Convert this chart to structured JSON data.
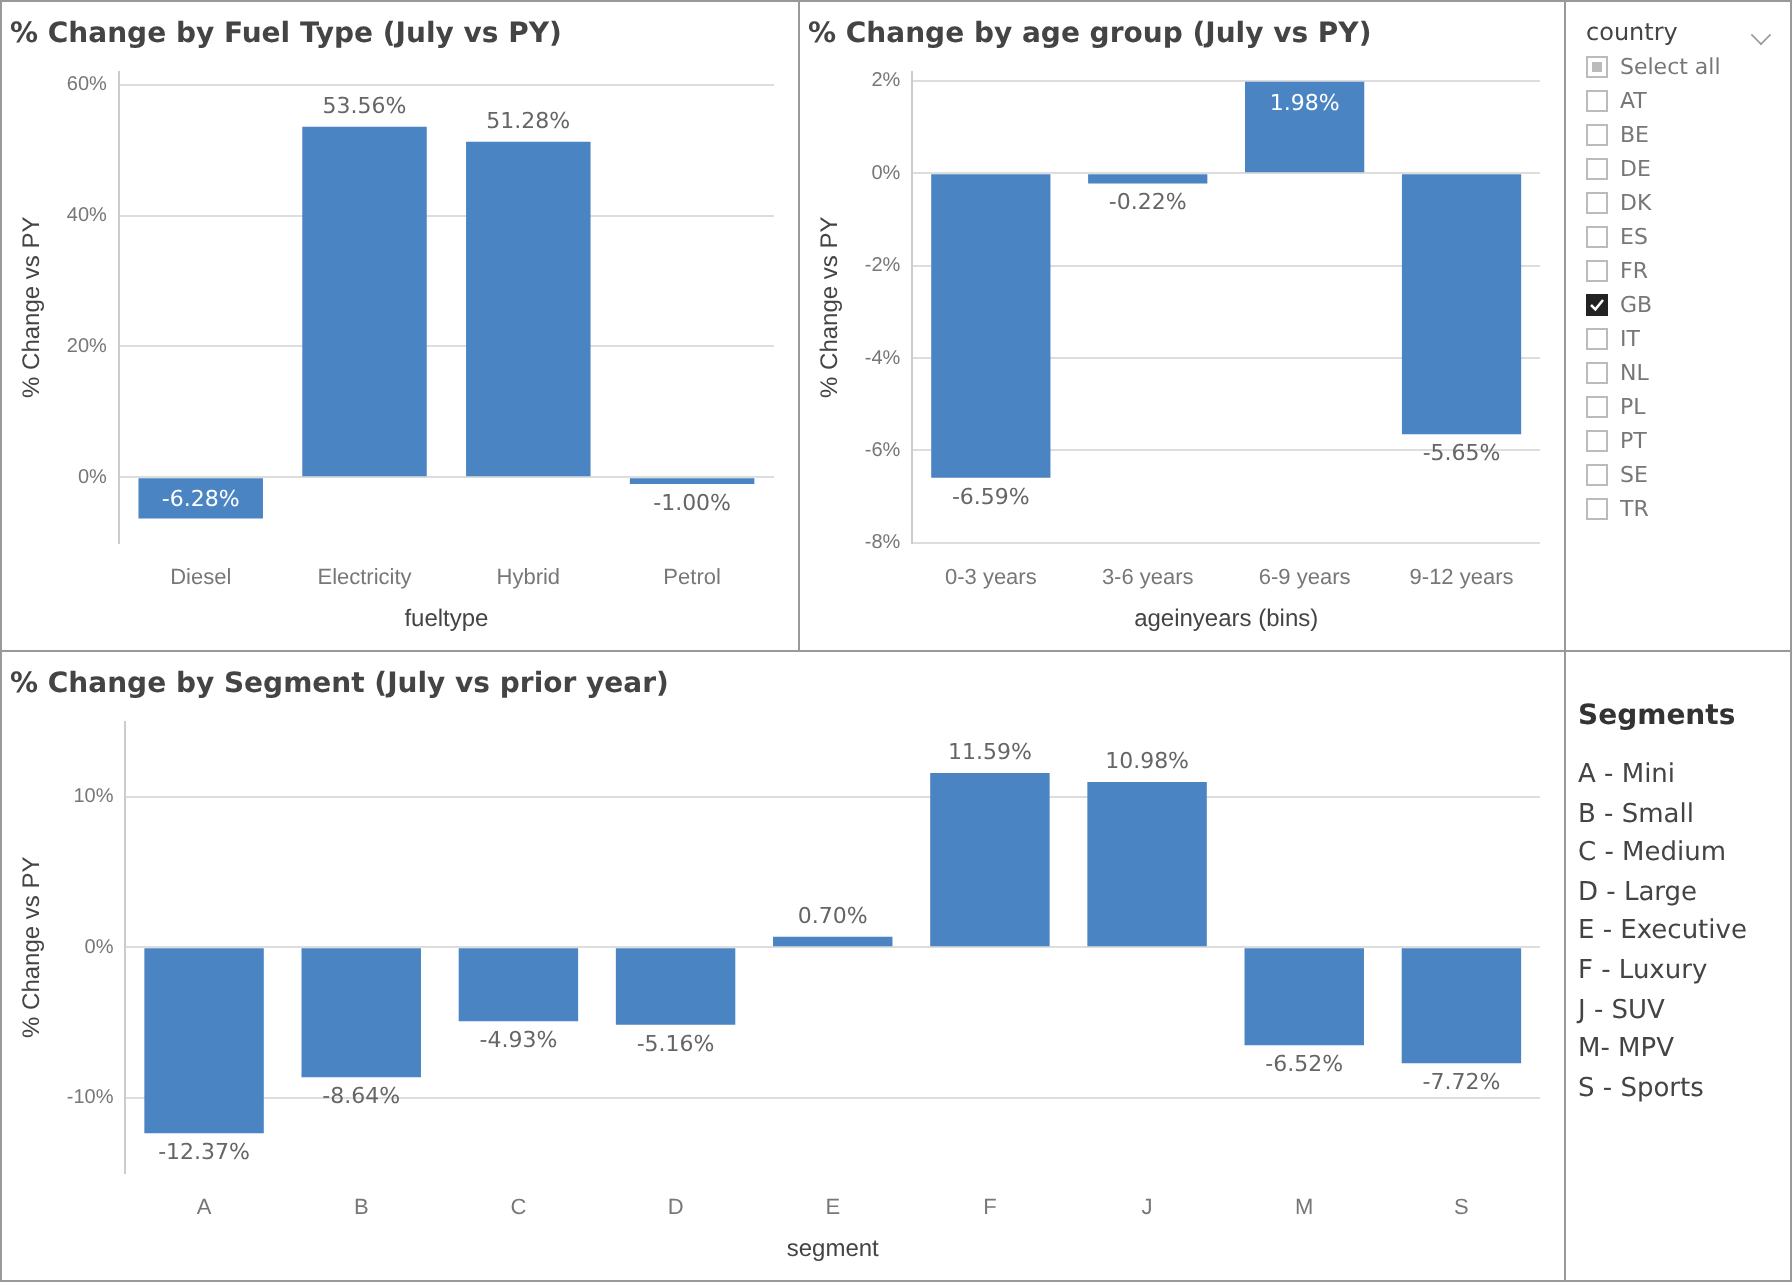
{
  "chart_data": [
    {
      "type": "bar",
      "title": "% Change by Fuel Type (July vs PY)",
      "xlabel": "fueltype",
      "ylabel": "% Change vs PY",
      "categories": [
        "Diesel",
        "Electricity",
        "Hybrid",
        "Petrol"
      ],
      "values": [
        -6.28,
        53.56,
        51.28,
        -1.0
      ],
      "value_labels": [
        "-6.28%",
        "53.56%",
        "51.28%",
        "-1.00%"
      ],
      "color": "#4a84c2",
      "ylim": [
        -10,
        62
      ],
      "yticks": [
        {
          "value": 0,
          "label": "0%"
        },
        {
          "value": 20,
          "label": "20%"
        },
        {
          "value": 40,
          "label": "40%"
        },
        {
          "value": 60,
          "label": "60%"
        }
      ],
      "grid": "y"
    },
    {
      "type": "bar",
      "title": "% Change by age group (July vs PY)",
      "xlabel": "ageinyears (bins)",
      "ylabel": "% Change vs PY",
      "categories": [
        "0-3 years",
        "3-6 years",
        "6-9 years",
        "9-12 years"
      ],
      "values": [
        -6.59,
        -0.22,
        1.98,
        -5.65
      ],
      "value_labels": [
        "-6.59%",
        "-0.22%",
        "1.98%",
        "-5.65%"
      ],
      "color": "#4a84c2",
      "ylim": [
        -8,
        2.2
      ],
      "yticks": [
        {
          "value": -8,
          "label": "-8%"
        },
        {
          "value": -6,
          "label": "-6%"
        },
        {
          "value": -4,
          "label": "-4%"
        },
        {
          "value": -2,
          "label": "-2%"
        },
        {
          "value": 0,
          "label": "0%"
        },
        {
          "value": 2,
          "label": "2%"
        }
      ],
      "grid": "y"
    },
    {
      "type": "other",
      "title": "country",
      "annotations": [
        "Select all",
        "AT",
        "BE",
        "DE",
        "DK",
        "ES",
        "FR",
        "GB",
        "IT",
        "NL",
        "PL",
        "PT",
        "SE",
        "TR"
      ]
    },
    {
      "type": "bar",
      "title": "% Change by Segment (July vs prior year)",
      "xlabel": "segment",
      "ylabel": "% Change vs PY",
      "categories": [
        "A",
        "B",
        "C",
        "D",
        "E",
        "F",
        "J",
        "M",
        "S"
      ],
      "values": [
        -12.37,
        -8.64,
        -4.93,
        -5.16,
        0.7,
        11.59,
        10.98,
        -6.52,
        -7.72
      ],
      "value_labels": [
        "-12.37%",
        "-8.64%",
        "-4.93%",
        "-5.16%",
        "0.70%",
        "11.59%",
        "10.98%",
        "-6.52%",
        "-7.72%"
      ],
      "color": "#4a84c2",
      "ylim": [
        -15,
        15
      ],
      "yticks": [
        {
          "value": -10,
          "label": "-10%"
        },
        {
          "value": 0,
          "label": "0%"
        },
        {
          "value": 10,
          "label": "10%"
        }
      ],
      "grid": "y"
    },
    {
      "type": "other",
      "title": "Segments",
      "annotations": [
        "A - Mini",
        "B - Small",
        "C - Medium",
        "D - Large",
        "E - Executive",
        "F - Luxury",
        "J - SUV",
        "M- MPV",
        "S - Sports"
      ]
    }
  ]
}
